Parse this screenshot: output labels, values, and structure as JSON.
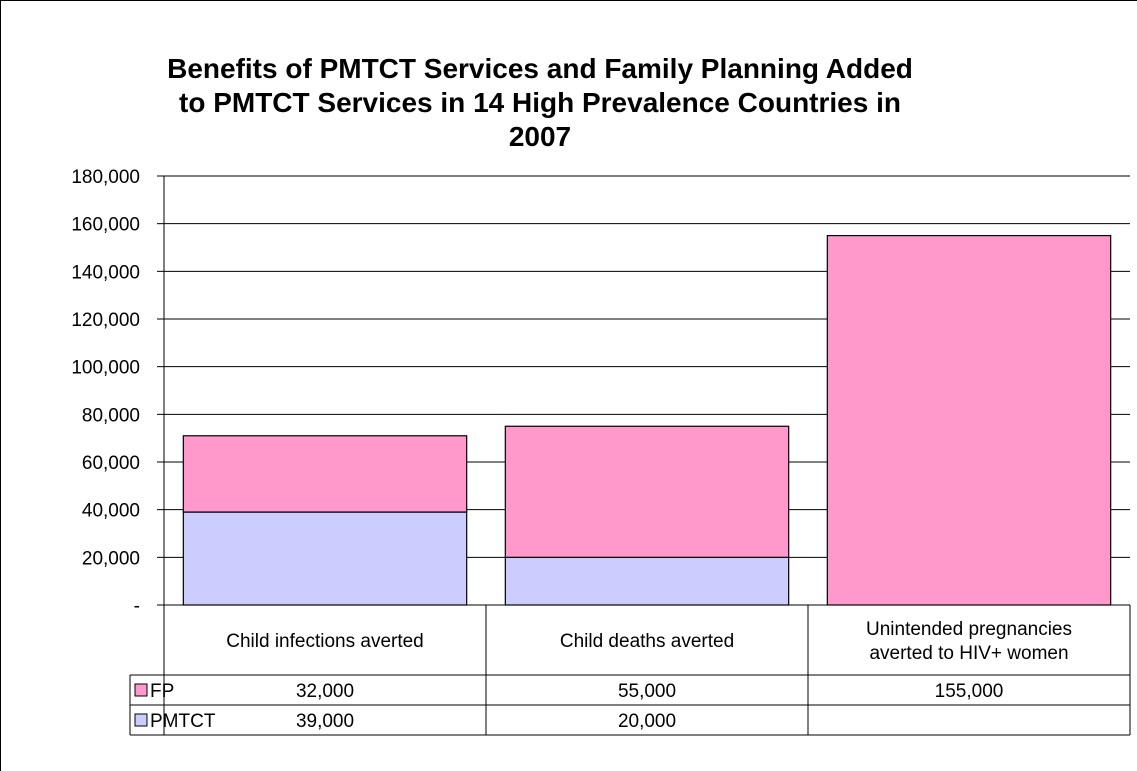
{
  "chart_data": {
    "type": "bar",
    "stacked": true,
    "title": "Benefits of PMTCT Services and Family Planning Added to PMTCT Services in 14 High Prevalence Countries in 2007",
    "title_lines": [
      "Benefits of PMTCT Services and Family Planning Added",
      "to PMTCT Services in 14 High Prevalence Countries in",
      "2007"
    ],
    "categories": [
      [
        "Child infections averted"
      ],
      [
        "Child deaths averted"
      ],
      [
        "Unintended pregnancies",
        "averted to HIV+ women"
      ]
    ],
    "series": [
      {
        "name": "PMTCT",
        "color": "#ccccff",
        "values": [
          39000,
          20000,
          null
        ],
        "labels": [
          "39,000",
          "20,000",
          ""
        ]
      },
      {
        "name": "FP",
        "color": "#ff99cc",
        "values": [
          32000,
          55000,
          155000
        ],
        "labels": [
          "32,000",
          "55,000",
          "155,000"
        ]
      }
    ],
    "ylim": [
      0,
      180000
    ],
    "yticks": [
      0,
      20000,
      40000,
      60000,
      80000,
      100000,
      120000,
      140000,
      160000,
      180000
    ],
    "ytick_labels": [
      "-",
      "20,000",
      "40,000",
      "60,000",
      "80,000",
      "100,000",
      "120,000",
      "140,000",
      "160,000",
      "180,000"
    ],
    "grid": true,
    "data_table": true,
    "table_row_order": [
      "FP",
      "PMTCT"
    ]
  }
}
